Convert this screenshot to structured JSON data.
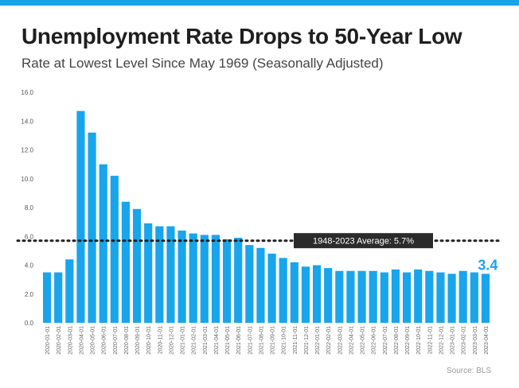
{
  "header": {
    "title": "Unemployment Rate Drops to 50-Year Low",
    "subtitle": "Rate at Lowest Level Since May 1969 (Seasonally Adjusted)"
  },
  "footer": {
    "source": "Source: BLS"
  },
  "colors": {
    "accent": "#1aa3e8",
    "bar": "#18a5ec",
    "callout_bg": "#2b2b2b",
    "callout_text": "#ffffff",
    "reference_line": "#222222"
  },
  "chart_data": {
    "type": "bar",
    "title": "Unemployment Rate Drops to 50-Year Low",
    "subtitle": "Rate at Lowest Level Since May 1969 (Seasonally Adjusted)",
    "xlabel": "",
    "ylabel": "",
    "ylim": [
      0,
      16
    ],
    "yticks": [
      "0.0",
      "2.0",
      "4.0",
      "6.0",
      "8.0",
      "10.0",
      "12.0",
      "14.0",
      "16.0"
    ],
    "grid": false,
    "categories": [
      "2020-01-01",
      "2020-02-01",
      "2020-03-01",
      "2020-04-01",
      "2020-05-01",
      "2020-06-01",
      "2020-07-01",
      "2020-08-01",
      "2020-09-01",
      "2020-10-01",
      "2020-11-01",
      "2020-12-01",
      "2021-01-01",
      "2021-02-01",
      "2021-03-01",
      "2021-04-01",
      "2021-05-01",
      "2021-06-01",
      "2021-07-01",
      "2021-08-01",
      "2021-09-01",
      "2021-10-01",
      "2021-11-01",
      "2021-12-01",
      "2022-01-01",
      "2022-02-01",
      "2022-03-01",
      "2022-04-01",
      "2022-05-01",
      "2022-06-01",
      "2022-07-01",
      "2022-08-01",
      "2022-09-01",
      "2022-10-01",
      "2022-11-01",
      "2022-12-01",
      "2023-01-01",
      "2023-02-01",
      "2023-03-01",
      "2023-04-01"
    ],
    "values": [
      3.5,
      3.5,
      4.4,
      14.7,
      13.2,
      11.0,
      10.2,
      8.4,
      7.9,
      6.9,
      6.7,
      6.7,
      6.4,
      6.2,
      6.1,
      6.1,
      5.8,
      5.9,
      5.4,
      5.2,
      4.8,
      4.5,
      4.2,
      3.9,
      4.0,
      3.8,
      3.6,
      3.6,
      3.6,
      3.6,
      3.5,
      3.7,
      3.5,
      3.7,
      3.6,
      3.5,
      3.4,
      3.6,
      3.5,
      3.4
    ],
    "reference_line": {
      "value": 5.7,
      "label": "1948-2023 Average: 5.7%"
    },
    "last_value_label": "3.4"
  }
}
